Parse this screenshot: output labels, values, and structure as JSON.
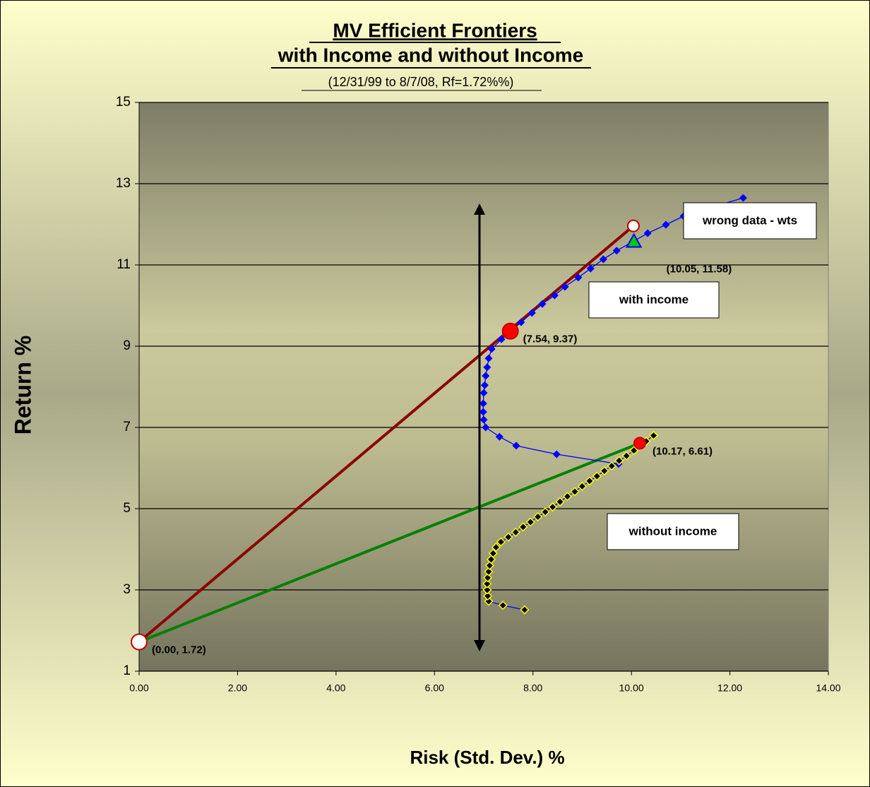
{
  "chart_data": {
    "type": "scatter",
    "title": "MV Efficient Frontiers",
    "title_line2": "with Income and without Income",
    "subtitle": "(12/31/99 to 8/7/08, Rf=1.72%%)",
    "xlabel": "Risk (Std. Dev.) %",
    "ylabel": "Return %",
    "xlim": [
      0,
      14
    ],
    "ylim": [
      1,
      15
    ],
    "xticks": [
      {
        "value": 0,
        "label": "0.00"
      },
      {
        "value": 2,
        "label": "2.00"
      },
      {
        "value": 4,
        "label": "4.00"
      },
      {
        "value": 6,
        "label": "6.00"
      },
      {
        "value": 8,
        "label": "8.00"
      },
      {
        "value": 10,
        "label": "10.00"
      },
      {
        "value": 12,
        "label": "12.00"
      },
      {
        "value": 14,
        "label": "14.00"
      }
    ],
    "yticks": [
      1,
      3,
      5,
      7,
      9,
      11,
      13,
      15
    ],
    "grid": true,
    "series": [
      {
        "color": "#8b0000",
        "marker": "none",
        "x": [
          0,
          10.04
        ],
        "values": [
          1.72,
          11.96
        ]
      },
      {
        "color": "#008000",
        "marker": "none",
        "x": [
          0,
          10.17
        ],
        "values": [
          1.72,
          6.61
        ]
      },
      {
        "color": "#0000ff",
        "marker": "diamond",
        "marker_color": "#0000ff",
        "x": [
          9.74,
          8.48,
          7.66,
          7.32,
          7.04,
          7.0,
          6.99,
          6.99,
          7.0,
          7.02,
          7.04,
          7.07,
          7.1,
          7.16,
          7.36,
          7.76,
          7.98,
          8.19,
          8.44,
          8.65,
          8.92,
          9.17,
          9.43,
          9.7,
          10.33,
          10.7,
          11.06,
          11.66,
          12.27
        ],
        "values": [
          6.1,
          6.34,
          6.55,
          6.77,
          7.0,
          7.19,
          7.38,
          7.59,
          7.85,
          8.04,
          8.27,
          8.48,
          8.7,
          8.93,
          9.17,
          9.59,
          9.82,
          10.04,
          10.25,
          10.46,
          10.69,
          10.91,
          11.14,
          11.35,
          11.78,
          11.99,
          12.2,
          12.43,
          12.65
        ]
      },
      {
        "color": "#0000ff",
        "marker": "diamond",
        "marker_color": "#000000",
        "marker_edge": "#ffff00",
        "x": [
          7.83,
          7.39,
          7.1,
          7.08,
          7.07,
          7.07,
          7.08,
          7.1,
          7.12,
          7.15,
          7.19,
          7.25,
          7.35,
          7.5,
          7.65,
          7.8,
          7.95,
          8.1,
          8.25,
          8.4,
          8.55,
          8.7,
          8.85,
          9.0,
          9.15,
          9.3,
          9.45,
          9.6,
          9.75,
          9.9,
          10.05,
          10.2,
          10.3,
          10.45
        ],
        "values": [
          2.51,
          2.62,
          2.72,
          2.85,
          3.0,
          3.15,
          3.3,
          3.45,
          3.6,
          3.75,
          3.9,
          4.05,
          4.18,
          4.3,
          4.42,
          4.55,
          4.67,
          4.8,
          4.92,
          5.04,
          5.17,
          5.3,
          5.42,
          5.55,
          5.68,
          5.8,
          5.93,
          6.05,
          6.18,
          6.3,
          6.43,
          6.56,
          6.66,
          6.8
        ]
      }
    ],
    "points": [
      {
        "x": 0,
        "y": 1.72,
        "shape": "circle",
        "color": "#ffffff",
        "edge": "#c00000",
        "label": "(0.00, 1.72)"
      },
      {
        "x": 10.04,
        "y": 11.96,
        "shape": "circle-small",
        "color": "#ffffff",
        "edge": "#c00000"
      },
      {
        "x": 7.54,
        "y": 9.37,
        "shape": "circle",
        "color": "#ff0000",
        "edge": "#c00000",
        "label": "(7.54, 9.37)"
      },
      {
        "x": 10.05,
        "y": 11.58,
        "shape": "triangle",
        "color": "#00cc00",
        "edge": "#0000ff",
        "label": "(10.05,  11.58)"
      },
      {
        "x": 10.17,
        "y": 6.61,
        "shape": "circle-small",
        "color": "#ff0000",
        "edge": "#c00000",
        "label": "(10.17, 6.61)"
      }
    ],
    "notes": [
      "wrong data - wts",
      "with income",
      "without income"
    ]
  }
}
